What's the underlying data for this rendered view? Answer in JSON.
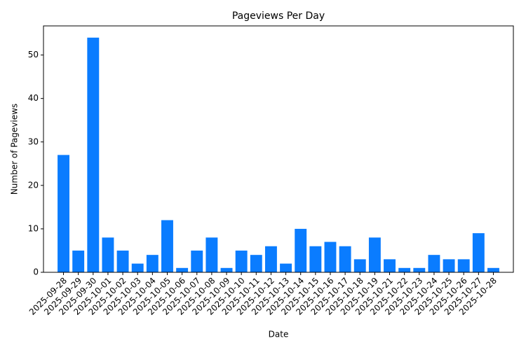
{
  "chart_data": {
    "type": "bar",
    "title": "Pageviews Per Day",
    "x_label": "Date",
    "y_label": "Number of Pageviews",
    "categories": [
      "2025-09-28",
      "2025-09-29",
      "2025-09-30",
      "2025-10-01",
      "2025-10-02",
      "2025-10-03",
      "2025-10-04",
      "2025-10-05",
      "2025-10-06",
      "2025-10-07",
      "2025-10-08",
      "2025-10-09",
      "2025-10-10",
      "2025-10-11",
      "2025-10-12",
      "2025-10-13",
      "2025-10-14",
      "2025-10-15",
      "2025-10-16",
      "2025-10-17",
      "2025-10-18",
      "2025-10-19",
      "2025-10-21",
      "2025-10-22",
      "2025-10-23",
      "2025-10-24",
      "2025-10-25",
      "2025-10-26",
      "2025-10-27",
      "2025-10-28"
    ],
    "values": [
      27,
      5,
      54,
      8,
      5,
      2,
      4,
      12,
      1,
      5,
      8,
      1,
      5,
      4,
      6,
      2,
      10,
      6,
      7,
      6,
      3,
      8,
      3,
      1,
      1,
      4,
      3,
      3,
      9,
      1
    ],
    "color": "#0a7cff",
    "ylim": [
      0,
      56.7
    ],
    "yticks": [
      0,
      10,
      20,
      30,
      40,
      50
    ],
    "grid": false
  }
}
